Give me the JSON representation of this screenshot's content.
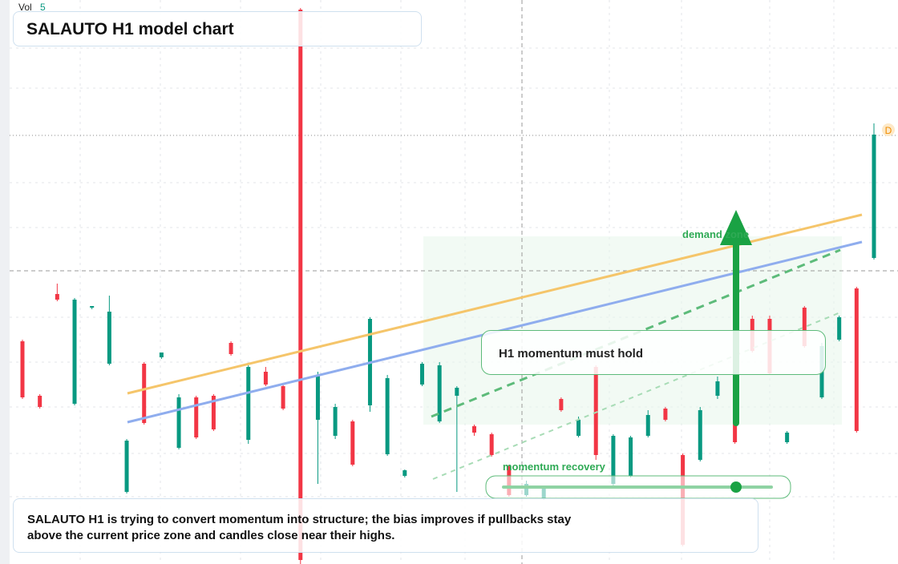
{
  "chart_data": {
    "type": "candlestick",
    "title": "SALAUTO H1 model chart",
    "volume_label": "Vol",
    "volume_value": 5,
    "marker": "D",
    "zone_label": "demand zone",
    "callout": "H1 momentum must hold",
    "slider_label": "momentum recovery",
    "note": "SALAUTO H1 is trying to convert momentum into structure; the bias improves if pullbacks stay above the current price zone and candles close near their highs.",
    "up_color": "#089981",
    "down_color": "#f23645",
    "ylim": [
      0,
      704
    ],
    "open": [
      278,
      210,
      337,
      200,
      320,
      250,
      90,
      250,
      258,
      145,
      208,
      210,
      276,
      155,
      240,
      222,
      692,
      180,
      160,
      178,
      198,
      137,
      110,
      224,
      178,
      210,
      172,
      162,
      122,
      86,
      82,
      206,
      160,
      246,
      100,
      110,
      160,
      194,
      136,
      130,
      210,
      228,
      306,
      306,
      152,
      320,
      208,
      280,
      344,
      382
    ],
    "high": [
      280,
      212,
      350,
      332,
      322,
      335,
      156,
      252,
      264,
      212,
      210,
      212,
      278,
      248,
      246,
      224,
      694,
      240,
      200,
      180,
      308,
      236,
      118,
      252,
      252,
      222,
      174,
      164,
      124,
      104,
      98,
      208,
      184,
      248,
      162,
      160,
      192,
      196,
      138,
      196,
      234,
      234,
      310,
      310,
      166,
      322,
      276,
      310,
      346,
      550
    ],
    "low": [
      206,
      194,
      328,
      198,
      318,
      248,
      88,
      174,
      256,
      143,
      156,
      166,
      260,
      150,
      222,
      192,
      0,
      100,
      156,
      122,
      190,
      135,
      108,
      222,
      176,
      90,
      160,
      134,
      84,
      84,
      80,
      190,
      158,
      130,
      98,
      108,
      158,
      178,
      22,
      128,
      206,
      150,
      264,
      236,
      150,
      270,
      206,
      278,
      164,
      380
    ],
    "close": [
      208,
      196,
      330,
      330,
      322,
      315,
      154,
      176,
      264,
      208,
      158,
      168,
      262,
      246,
      224,
      194,
      5,
      236,
      196,
      124,
      306,
      232,
      117,
      250,
      248,
      220,
      164,
      136,
      86,
      100,
      96,
      192,
      180,
      136,
      160,
      158,
      186,
      180,
      24,
      192,
      228,
      152,
      266,
      238,
      164,
      272,
      272,
      308,
      166,
      536
    ]
  }
}
